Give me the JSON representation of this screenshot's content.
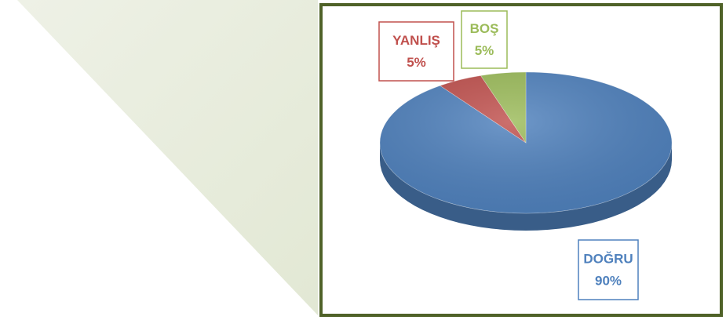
{
  "chart_data": {
    "type": "pie",
    "categories": [
      "DOĞRU",
      "YANLIŞ",
      "BOŞ"
    ],
    "values": [
      90,
      5,
      5
    ],
    "value_labels": [
      "90%",
      "5%",
      "5%"
    ],
    "colors": [
      "#4f81bd",
      "#c0504d",
      "#9bbb59"
    ],
    "start_angle": 0,
    "direction": "clockwise",
    "three_d": true
  }
}
